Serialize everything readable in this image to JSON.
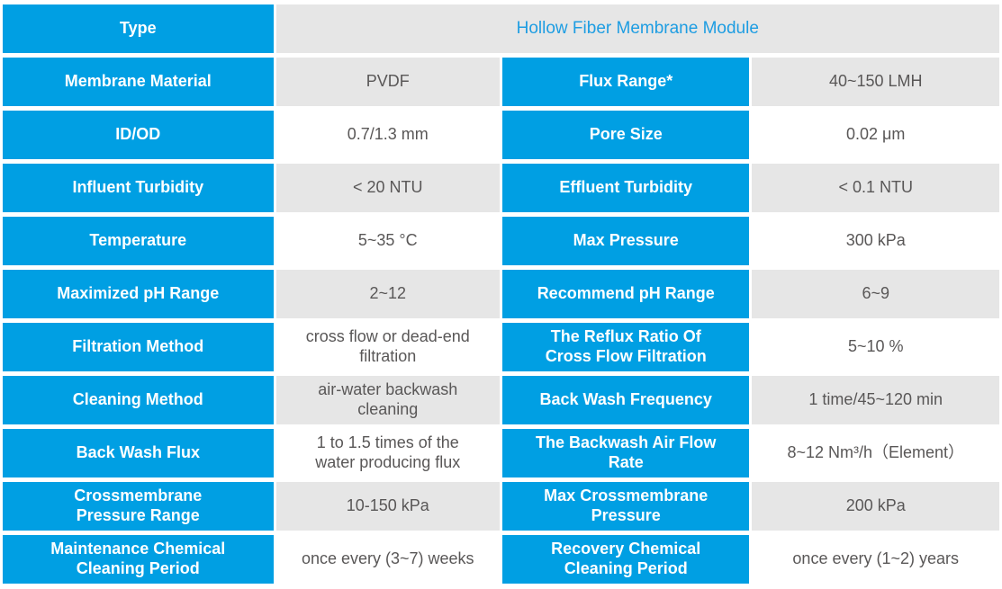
{
  "colors": {
    "label_cell_blue": "#009fe3",
    "label_text_white": "#ffffff",
    "value_cell_gray": "#e6e6e6",
    "value_cell_white": "#ffffff",
    "value_text_gray": "#595757",
    "title_text_blue": "#1e9de2"
  },
  "table": {
    "title_row": {
      "label": "Type",
      "value": "Hollow Fiber Membrane Module"
    },
    "rows": [
      {
        "label1": "Membrane Material",
        "value1": "PVDF",
        "label2": "Flux Range*",
        "value2": "40~150 LMH"
      },
      {
        "label1": "ID/OD",
        "value1": "0.7/1.3 mm",
        "label2": "Pore Size",
        "value2": "0.02 μm"
      },
      {
        "label1": "Influent Turbidity",
        "value1": "< 20 NTU",
        "label2": "Effluent Turbidity",
        "value2": "< 0.1 NTU"
      },
      {
        "label1": "Temperature",
        "value1": "5~35 °C",
        "label2": "Max Pressure",
        "value2": "300 kPa"
      },
      {
        "label1": "Maximized pH Range",
        "value1": "2~12",
        "label2": "Recommend pH Range",
        "value2": "6~9"
      },
      {
        "label1": "Filtration Method",
        "value1": "cross flow or dead-end filtration",
        "label2": "The Reflux Ratio Of Cross Flow Filtration",
        "value2": "5~10 %"
      },
      {
        "label1": "Cleaning Method",
        "value1": "air-water backwash cleaning",
        "label2": "Back Wash Frequency",
        "value2": "1 time/45~120 min"
      },
      {
        "label1": "Back Wash Flux",
        "value1": "1 to 1.5 times of the water producing flux",
        "label2": "The Backwash Air Flow Rate",
        "value2": "8~12 Nm³/h（Element）"
      },
      {
        "label1": "Crossmembrane Pressure Range",
        "value1": "10-150 kPa",
        "label2": "Max Crossmembrane Pressure",
        "value2": "200 kPa"
      },
      {
        "label1": "Maintenance Chemical Cleaning Period",
        "value1": "once every (3~7) weeks",
        "label2": "Recovery Chemical Cleaning Period",
        "value2": "once every (1~2) years"
      }
    ]
  }
}
